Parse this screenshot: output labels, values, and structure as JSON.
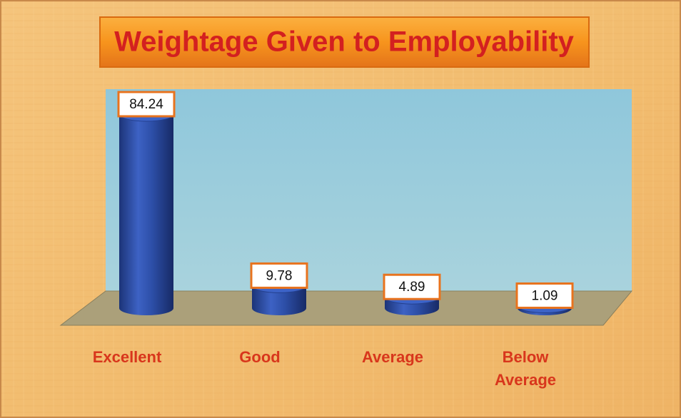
{
  "chart_data": {
    "type": "bar",
    "title": "Weightage Given to Employability",
    "categories": [
      "Excellent",
      "Good",
      "Average",
      "Below Average"
    ],
    "values": [
      84.24,
      9.78,
      4.89,
      1.09
    ],
    "color": "#2d4fa8"
  }
}
